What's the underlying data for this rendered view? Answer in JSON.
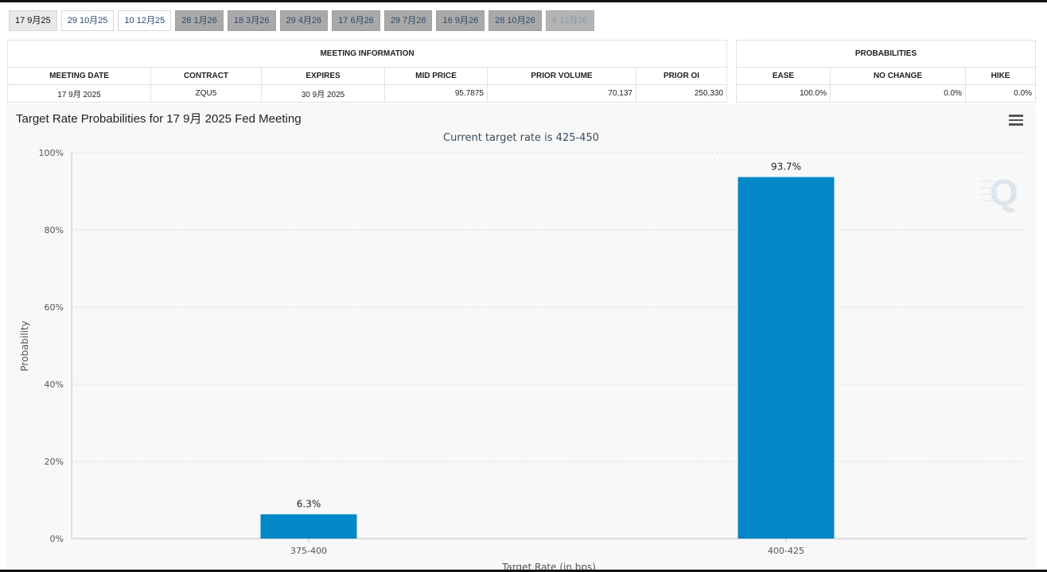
{
  "tabs": [
    {
      "label": "17 9月25",
      "state": "active"
    },
    {
      "label": "29 10月25",
      "state": "plain"
    },
    {
      "label": "10 12月25",
      "state": "plain"
    },
    {
      "label": "28 1月26",
      "state": "dim"
    },
    {
      "label": "18 3月26",
      "state": "dim"
    },
    {
      "label": "29 4月26",
      "state": "dim"
    },
    {
      "label": "17 6月26",
      "state": "dim"
    },
    {
      "label": "29 7月26",
      "state": "dim"
    },
    {
      "label": "16 9月26",
      "state": "dim"
    },
    {
      "label": "28 10月26",
      "state": "dim"
    },
    {
      "label": "9 12月26",
      "state": "disabled"
    }
  ],
  "meeting_info": {
    "title": "MEETING INFORMATION",
    "headers": [
      "MEETING DATE",
      "CONTRACT",
      "EXPIRES",
      "MID PRICE",
      "PRIOR VOLUME",
      "PRIOR OI"
    ],
    "row": [
      "17 9月 2025",
      "ZQU5",
      "30 9月 2025",
      "95.7875",
      "70,137",
      "250,330"
    ]
  },
  "probabilities": {
    "title": "PROBABILITIES",
    "headers": [
      "EASE",
      "NO CHANGE",
      "HIKE"
    ],
    "row": [
      "100.0%",
      "0.0%",
      "0.0%"
    ]
  },
  "chart_title": "Target Rate Probabilities for 17 9月 2025 Fed Meeting",
  "chart_data": {
    "type": "bar",
    "title": "Target Rate Probabilities for 17 9月 2025 Fed Meeting",
    "subtitle": "Current target rate is 425-450",
    "xlabel": "Target Rate (in bps)",
    "ylabel": "Probability",
    "categories": [
      "375-400",
      "400-425"
    ],
    "values": [
      6.3,
      93.7
    ],
    "data_labels": [
      "6.3%",
      "93.7%"
    ],
    "ylim": [
      0,
      100
    ],
    "yticks": [
      0,
      20,
      40,
      60,
      80,
      100
    ],
    "ytick_labels": [
      "0%",
      "20%",
      "40%",
      "60%",
      "80%",
      "100%"
    ],
    "grid": true,
    "legend": "none"
  },
  "colors": {
    "bar": "#0288c6",
    "grid": "#d6d6d6",
    "axis_text": "#555555",
    "subtitle": "#3a4d5e"
  },
  "watermark_letter": "Q",
  "menu_icon": "hamburger-menu-icon"
}
